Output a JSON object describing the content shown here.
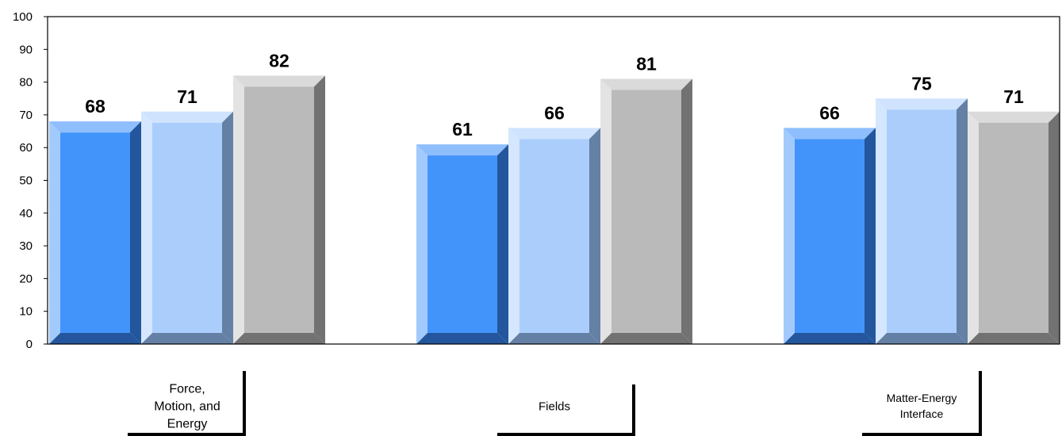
{
  "chart_data": {
    "type": "bar",
    "title": "",
    "xlabel": "",
    "ylabel": "",
    "ylim": [
      0,
      100
    ],
    "yticks": [
      0,
      10,
      20,
      30,
      40,
      50,
      60,
      70,
      80,
      90,
      100
    ],
    "grid": false,
    "legend": "none",
    "style": "3d-bevel",
    "categories": [
      {
        "lines": [
          "Force,",
          "Motion, and",
          "Energy"
        ]
      },
      {
        "lines": [
          "Fields"
        ]
      },
      {
        "lines": [
          "Matter-Energy",
          "Interface"
        ]
      }
    ],
    "series": [
      {
        "values": [
          68,
          61,
          66
        ],
        "colors": {
          "front": "#4294fb",
          "top": "#8ebefc",
          "left": "#a3cafc",
          "right": "#23569c",
          "bottom": "#23569c"
        }
      },
      {
        "values": [
          71,
          66,
          75
        ],
        "colors": {
          "front": "#aacdfc",
          "top": "#cfe3fe",
          "left": "#d5e7fe",
          "right": "#6480a4",
          "bottom": "#6480a4"
        }
      },
      {
        "values": [
          82,
          81,
          71
        ],
        "colors": {
          "front": "#bababa",
          "top": "#dadada",
          "left": "#e3e3e3",
          "right": "#727272",
          "bottom": "#727272"
        }
      }
    ],
    "data_labels": [
      [
        "68",
        "71",
        "82"
      ],
      [
        "61",
        "66",
        "81"
      ],
      [
        "66",
        "75",
        "71"
      ]
    ]
  }
}
